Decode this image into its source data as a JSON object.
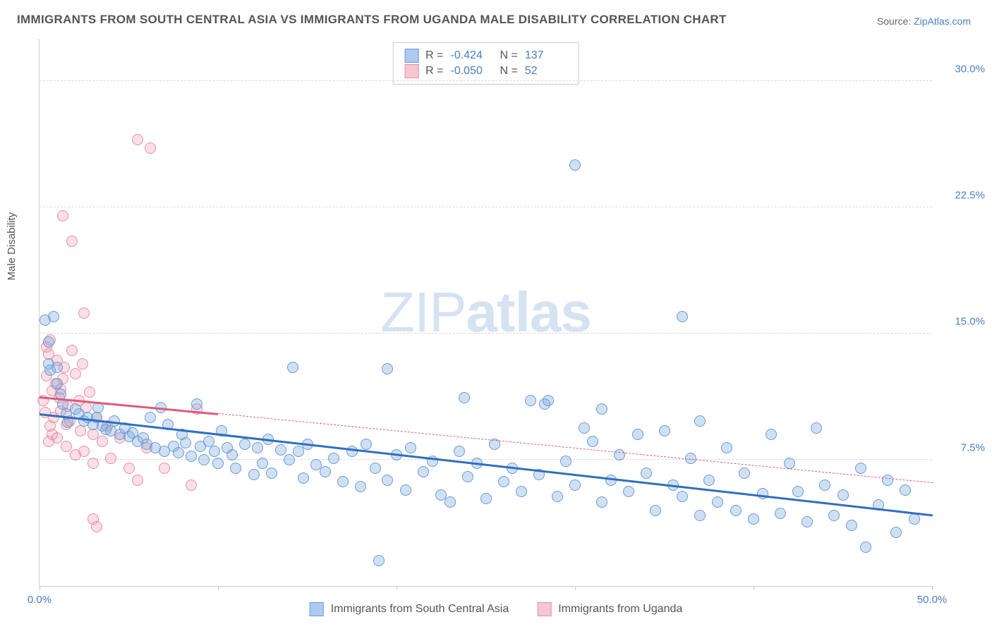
{
  "title": "IMMIGRANTS FROM SOUTH CENTRAL ASIA VS IMMIGRANTS FROM UGANDA MALE DISABILITY CORRELATION CHART",
  "source_prefix": "Source: ",
  "source_link": "ZipAtlas.com",
  "ylabel": "Male Disability",
  "watermark_light": "ZIP",
  "watermark_bold": "atlas",
  "axes": {
    "xlim": [
      0,
      50
    ],
    "ylim": [
      0,
      32.5
    ],
    "xticks": [
      0,
      10,
      20,
      30,
      40,
      50
    ],
    "xtick_labels": {
      "0": "0.0%",
      "50": "50.0%"
    },
    "yticks": [
      7.5,
      15.0,
      22.5,
      30.0
    ],
    "ytick_labels": [
      "7.5%",
      "15.0%",
      "22.5%",
      "30.0%"
    ]
  },
  "colors": {
    "series1_fill": "rgba(120,165,220,0.35)",
    "series1_stroke": "#6a9bd6",
    "series1_line": "#2e6fc1",
    "series2_fill": "rgba(240,150,170,0.30)",
    "series2_stroke": "#e391a6",
    "series2_line": "#e05a7a",
    "swatch_blue_bg": "#aecaf0",
    "swatch_blue_border": "#6a9bd6",
    "swatch_pink_bg": "#f7c6d0",
    "swatch_pink_border": "#e391a6",
    "text_gray": "#555555",
    "link_blue": "#4a7fc4"
  },
  "marker_radius": 8,
  "stats": {
    "r_label": "R =",
    "n_label": "N =",
    "series1_r": "-0.424",
    "series1_n": "137",
    "series2_r": "-0.050",
    "series2_n": "52"
  },
  "legend": {
    "series1": "Immigrants from South Central Asia",
    "series2": "Immigrants from Uganda"
  },
  "trend_lines": {
    "series1": {
      "x1": 0,
      "y1": 10.3,
      "x2": 50,
      "y2": 4.3,
      "width": 3,
      "dashed": false
    },
    "series1_ext": null,
    "series2_solid": {
      "x1": 0,
      "y1": 11.3,
      "x2": 10,
      "y2": 10.3,
      "width": 3,
      "dashed": false
    },
    "series2_dashed": {
      "x1": 10,
      "y1": 10.3,
      "x2": 50,
      "y2": 6.2,
      "width": 1,
      "dashed": true
    }
  },
  "series1_points": [
    [
      0.3,
      15.8
    ],
    [
      0.5,
      14.5
    ],
    [
      0.5,
      13.2
    ],
    [
      0.8,
      16.0
    ],
    [
      0.6,
      12.8
    ],
    [
      1.0,
      13.0
    ],
    [
      1.0,
      12.0
    ],
    [
      1.2,
      11.4
    ],
    [
      1.3,
      10.8
    ],
    [
      1.5,
      10.2
    ],
    [
      1.6,
      9.7
    ],
    [
      2.0,
      10.5
    ],
    [
      2.2,
      10.2
    ],
    [
      2.5,
      9.8
    ],
    [
      2.7,
      10.0
    ],
    [
      3.0,
      9.6
    ],
    [
      3.2,
      10.0
    ],
    [
      3.5,
      9.5
    ],
    [
      3.7,
      9.3
    ],
    [
      3.3,
      10.6
    ],
    [
      4.0,
      9.2
    ],
    [
      4.2,
      9.8
    ],
    [
      4.5,
      9.0
    ],
    [
      4.8,
      9.4
    ],
    [
      5.0,
      8.9
    ],
    [
      5.2,
      9.1
    ],
    [
      5.5,
      8.6
    ],
    [
      5.8,
      8.8
    ],
    [
      6.0,
      8.4
    ],
    [
      6.2,
      10.0
    ],
    [
      6.5,
      8.2
    ],
    [
      6.8,
      10.6
    ],
    [
      7.0,
      8.0
    ],
    [
      7.2,
      9.6
    ],
    [
      7.5,
      8.3
    ],
    [
      7.8,
      7.9
    ],
    [
      8.0,
      9.0
    ],
    [
      8.2,
      8.5
    ],
    [
      8.5,
      7.7
    ],
    [
      8.8,
      10.8
    ],
    [
      9.0,
      8.3
    ],
    [
      9.2,
      7.5
    ],
    [
      9.5,
      8.6
    ],
    [
      9.8,
      8.0
    ],
    [
      10.0,
      7.3
    ],
    [
      10.2,
      9.2
    ],
    [
      10.5,
      8.2
    ],
    [
      10.8,
      7.8
    ],
    [
      11.0,
      7.0
    ],
    [
      11.5,
      8.4
    ],
    [
      12.0,
      6.6
    ],
    [
      12.2,
      8.2
    ],
    [
      12.5,
      7.3
    ],
    [
      12.8,
      8.7
    ],
    [
      13.0,
      6.7
    ],
    [
      13.5,
      8.1
    ],
    [
      14.0,
      7.5
    ],
    [
      14.2,
      13.0
    ],
    [
      14.5,
      8.0
    ],
    [
      14.8,
      6.4
    ],
    [
      15.0,
      8.4
    ],
    [
      15.5,
      7.2
    ],
    [
      16.0,
      6.8
    ],
    [
      16.5,
      7.6
    ],
    [
      17.0,
      6.2
    ],
    [
      17.5,
      8.0
    ],
    [
      18.0,
      5.9
    ],
    [
      18.3,
      8.4
    ],
    [
      18.8,
      7.0
    ],
    [
      19.0,
      1.5
    ],
    [
      19.5,
      12.9
    ],
    [
      19.5,
      6.3
    ],
    [
      20.0,
      7.8
    ],
    [
      20.5,
      5.7
    ],
    [
      20.8,
      8.2
    ],
    [
      21.5,
      6.8
    ],
    [
      22.0,
      7.4
    ],
    [
      22.5,
      5.4
    ],
    [
      23.0,
      5.0
    ],
    [
      23.5,
      8.0
    ],
    [
      23.8,
      11.2
    ],
    [
      24.0,
      6.5
    ],
    [
      24.5,
      7.3
    ],
    [
      25.0,
      5.2
    ],
    [
      25.5,
      8.4
    ],
    [
      26.0,
      6.2
    ],
    [
      26.5,
      7.0
    ],
    [
      27.0,
      5.6
    ],
    [
      27.5,
      11.0
    ],
    [
      28.0,
      6.6
    ],
    [
      28.3,
      10.8
    ],
    [
      28.5,
      11.0
    ],
    [
      29.0,
      5.3
    ],
    [
      29.5,
      7.4
    ],
    [
      30.0,
      25.0
    ],
    [
      30.0,
      6.0
    ],
    [
      30.5,
      9.4
    ],
    [
      31.0,
      8.6
    ],
    [
      31.5,
      5.0
    ],
    [
      31.5,
      10.5
    ],
    [
      32.0,
      6.3
    ],
    [
      32.5,
      7.8
    ],
    [
      33.0,
      5.6
    ],
    [
      33.5,
      9.0
    ],
    [
      34.0,
      6.7
    ],
    [
      34.5,
      4.5
    ],
    [
      35.0,
      9.2
    ],
    [
      35.5,
      6.0
    ],
    [
      36.0,
      16.0
    ],
    [
      36.0,
      5.3
    ],
    [
      36.5,
      7.6
    ],
    [
      37.0,
      4.2
    ],
    [
      37.0,
      9.8
    ],
    [
      37.5,
      6.3
    ],
    [
      38.0,
      5.0
    ],
    [
      38.5,
      8.2
    ],
    [
      39.0,
      4.5
    ],
    [
      39.5,
      6.7
    ],
    [
      40.0,
      4.0
    ],
    [
      40.5,
      5.5
    ],
    [
      41.0,
      9.0
    ],
    [
      41.5,
      4.3
    ],
    [
      42.0,
      7.3
    ],
    [
      42.5,
      5.6
    ],
    [
      43.0,
      3.8
    ],
    [
      43.5,
      9.4
    ],
    [
      44.0,
      6.0
    ],
    [
      44.5,
      4.2
    ],
    [
      45.0,
      5.4
    ],
    [
      45.5,
      3.6
    ],
    [
      46.0,
      7.0
    ],
    [
      46.3,
      2.3
    ],
    [
      47.0,
      4.8
    ],
    [
      47.5,
      6.3
    ],
    [
      48.0,
      3.2
    ],
    [
      48.5,
      5.7
    ],
    [
      49.0,
      4.0
    ]
  ],
  "series2_points": [
    [
      0.2,
      11.0
    ],
    [
      0.4,
      12.5
    ],
    [
      0.3,
      10.3
    ],
    [
      0.5,
      13.8
    ],
    [
      0.6,
      9.5
    ],
    [
      0.7,
      11.6
    ],
    [
      0.4,
      14.2
    ],
    [
      0.8,
      10.0
    ],
    [
      0.9,
      12.0
    ],
    [
      0.5,
      8.6
    ],
    [
      1.0,
      13.4
    ],
    [
      0.7,
      9.0
    ],
    [
      1.1,
      11.2
    ],
    [
      0.6,
      14.6
    ],
    [
      1.2,
      10.4
    ],
    [
      1.3,
      12.3
    ],
    [
      1.0,
      8.8
    ],
    [
      1.4,
      13.0
    ],
    [
      1.5,
      9.6
    ],
    [
      1.2,
      11.7
    ],
    [
      1.6,
      10.7
    ],
    [
      1.8,
      14.0
    ],
    [
      1.5,
      8.3
    ],
    [
      2.0,
      12.6
    ],
    [
      1.7,
      9.8
    ],
    [
      2.2,
      11.0
    ],
    [
      2.0,
      7.8
    ],
    [
      2.4,
      13.2
    ],
    [
      2.3,
      9.2
    ],
    [
      2.6,
      10.6
    ],
    [
      2.5,
      8.0
    ],
    [
      2.8,
      11.5
    ],
    [
      3.0,
      9.0
    ],
    [
      3.2,
      10.0
    ],
    [
      3.0,
      7.3
    ],
    [
      3.5,
      8.6
    ],
    [
      3.8,
      9.5
    ],
    [
      4.0,
      7.6
    ],
    [
      4.5,
      8.8
    ],
    [
      5.0,
      7.0
    ],
    [
      5.5,
      6.3
    ],
    [
      6.0,
      8.2
    ],
    [
      7.0,
      7.0
    ],
    [
      8.5,
      6.0
    ],
    [
      8.8,
      10.5
    ],
    [
      1.3,
      22.0
    ],
    [
      1.8,
      20.5
    ],
    [
      2.5,
      16.2
    ],
    [
      3.0,
      4.0
    ],
    [
      3.2,
      3.5
    ],
    [
      5.5,
      26.5
    ],
    [
      6.2,
      26.0
    ]
  ]
}
